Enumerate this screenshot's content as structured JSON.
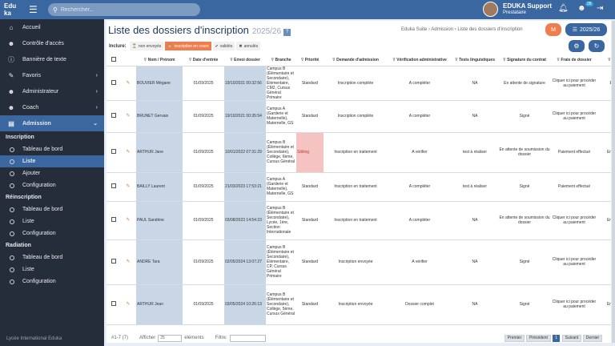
{
  "topbar": {
    "logo_top": "Edu",
    "logo_bottom": "ka",
    "search_placeholder": "Rechercher...",
    "user_name": "EDUKA Support",
    "user_role": "Prestataire",
    "notif_count": "28"
  },
  "sidebar": {
    "items": [
      {
        "label": "Accueil",
        "icon": "home-icon",
        "glyph": "⌂"
      },
      {
        "label": "Contrôle d'accès",
        "icon": "user-lock-icon",
        "glyph": "☻"
      },
      {
        "label": "Bannière de texte",
        "icon": "info-icon",
        "glyph": "ⓘ"
      },
      {
        "label": "Favoris",
        "icon": "pin-icon",
        "glyph": "✎"
      },
      {
        "label": "Administrateur",
        "icon": "admin-icon",
        "glyph": "☻"
      },
      {
        "label": "Coach",
        "icon": "coach-icon",
        "glyph": "☻"
      },
      {
        "label": "Admission",
        "icon": "admission-icon",
        "glyph": "▤"
      }
    ],
    "sections": [
      {
        "title": "Inscription",
        "items": [
          "Tableau de bord",
          "Liste",
          "Ajouter",
          "Configuration"
        ]
      },
      {
        "title": "Réinscription",
        "items": [
          "Tableau de bord",
          "Liste",
          "Configuration"
        ]
      },
      {
        "title": "Radiation",
        "items": [
          "Tableau de bord",
          "Liste",
          "Configuration"
        ]
      }
    ],
    "footer": "Lycée International Eduka"
  },
  "page": {
    "title": "Liste des dossiers d'inscription",
    "year": "2025/26",
    "help": "?",
    "breadcrumb": "Eduka Suite › Admission › Liste des dossiers d'inscription",
    "year_button": "2025/26",
    "m_button": "M"
  },
  "filters": {
    "label": "Inclure:",
    "chips": [
      {
        "icon": "⌛",
        "label": "non envoyés"
      },
      {
        "icon": "⌛",
        "label": "inscription en cours"
      },
      {
        "icon": "✔",
        "label": "validés"
      },
      {
        "icon": "✖",
        "label": "annulés"
      }
    ]
  },
  "table": {
    "headers": [
      "",
      "",
      "Nom / Prénom",
      "Date d'entrée",
      "Envoi dossier",
      "Branche",
      "Priorité",
      "Demande d'admission",
      "Vérification administrative",
      "Tests linguistiques",
      "Signature du contrat",
      "Frais de dossier",
      "Va"
    ],
    "rows": [
      {
        "name": "BOUVIER Mégane",
        "date": "01/09/2025",
        "envoi": "19/10/2021 00:32:56",
        "branche": "Campus B (Élémentaire et Secondaire), Élémentaire, CM2, Cursus Général Primaire",
        "priorite": "Standard",
        "demande": "Inscription complète",
        "verif": "A compléter",
        "tests": "NA",
        "signature": "En attente de signature",
        "frais": "Cliquer ici pour procéder au paiement",
        "va": "En"
      },
      {
        "name": "BRUNET Gervais",
        "date": "01/09/2025",
        "envoi": "19/10/2021 00:35:54",
        "branche": "Campus A (Garderie et Maternelle), Maternelle, GS",
        "priorite": "Standard",
        "demande": "Inscription complète",
        "verif": "A compléter",
        "tests": "NA",
        "signature": "Signé",
        "frais": "Cliquer ici pour procéder au paiement",
        "va": "D"
      },
      {
        "name": "ARTHUR Jane",
        "date": "01/09/2025",
        "envoi": "10/01/2022 07:31:29",
        "branche": "Campus B (Élémentaire et Secondaire), Collège, 6ème, Cursus Général",
        "priorite": "Sibling",
        "demande": "Inscription en traitement",
        "verif": "A vérifier",
        "tests": "test à réaliser",
        "signature": "En attente de soumission du dossier",
        "frais": "Paiement effectué",
        "va": "En att"
      },
      {
        "name": "BAILLY Laurent",
        "date": "01/09/2025",
        "envoi": "21/03/2023 17:53:21",
        "branche": "Campus A (Garderie et Maternelle), Maternelle, GS",
        "priorite": "Standard",
        "demande": "Inscription en traitement",
        "verif": "A compléter",
        "tests": "test à réaliser",
        "signature": "Signé",
        "frais": "Paiement effectué",
        "va": "D"
      },
      {
        "name": "PAUL Sandrine",
        "date": "01/09/2025",
        "envoi": "03/08/2023 14:54:23",
        "branche": "Campus B (Élémentaire et Secondaire), Lycée, 1ère, Section Internationale",
        "priorite": "Standard",
        "demande": "Inscription en traitement",
        "verif": "A compléter",
        "tests": "NA",
        "signature": "En attente de soumission du dossier",
        "frais": "Cliquer ici pour procéder au paiement",
        "va": "En att"
      },
      {
        "name": "ANDRE Tara",
        "date": "01/09/2025",
        "envoi": "02/05/2024 13:07:27",
        "branche": "Campus B (Élémentaire et Secondaire), Élémentaire, CP, Cursus Général Primaire",
        "priorite": "Standard",
        "demande": "Inscription envoyée",
        "verif": "A vérifier",
        "tests": "NA",
        "signature": "Signé",
        "frais": "Cliquer ici pour procéder au paiement",
        "va": "D"
      },
      {
        "name": "ARTHUR Jean",
        "date": "01/09/2025",
        "envoi": "03/05/2024 10:26:13",
        "branche": "Campus B (Élémentaire et Secondaire), Collège, 5ème, Cursus Général",
        "priorite": "Standard",
        "demande": "Inscription envoyée",
        "verif": "Dossier complet",
        "tests": "NA",
        "signature": "Signé",
        "frais": "Cliquer ici pour procéder au paiement",
        "va": "En att"
      }
    ]
  },
  "footer": {
    "count": "#1-7 (7)",
    "show_label": "Afficher",
    "show_value": "25",
    "elements_label": "éléments",
    "filter_label": "Filtre:",
    "first": "Premier",
    "prev": "Précédent",
    "page": "1",
    "next": "Suivant",
    "last": "Dernier"
  }
}
